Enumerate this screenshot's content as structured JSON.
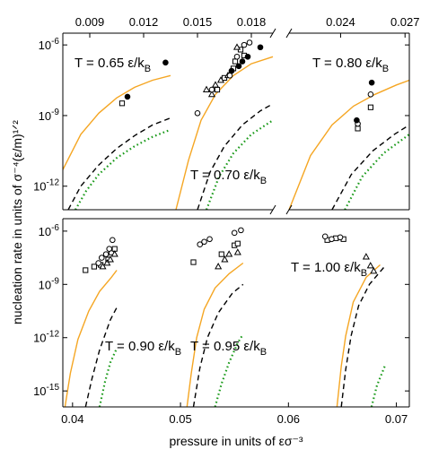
{
  "chart_data": {
    "type": "scatter",
    "ylabel": "nucleation rate in units of σ⁻⁴(ε/m)¹ᐟ²",
    "xlabel": "pressure in units of εσ⁻³",
    "panels": [
      {
        "name": "top",
        "x_range": [
          0.0075,
          0.0272
        ],
        "x_break": [
          0.0192,
          0.0216
        ],
        "x_ticks": [
          0.009,
          0.012,
          0.015,
          0.018,
          0.024,
          0.027
        ],
        "x_tick_labels": [
          "0.009",
          "0.012",
          "0.015",
          "0.018",
          "0.024",
          "0.027"
        ],
        "y_range_log10": [
          -13,
          -5.5
        ],
        "y_ticks_log10": [
          -6,
          -9,
          -12
        ],
        "y_tick_labels": [
          {
            "base": "10",
            "exp": "-6"
          },
          {
            "base": "10",
            "exp": "-9"
          },
          {
            "base": "10",
            "exp": "-12"
          }
        ],
        "temperature_labels": [
          {
            "text": "T = 0.65 ε/k",
            "sub": "B"
          },
          {
            "text": "T = 0.70 ε/k",
            "sub": "B"
          },
          {
            "text": "T = 0.80 ε/k",
            "sub": "B"
          }
        ],
        "groups": [
          {
            "T": 0.65,
            "orange": [
              [
                0.0075,
                -11.3
              ],
              [
                0.0085,
                -9.8
              ],
              [
                0.0095,
                -8.9
              ],
              [
                0.0105,
                -8.25
              ],
              [
                0.0115,
                -7.8
              ],
              [
                0.0125,
                -7.5
              ],
              [
                0.0135,
                -7.3
              ]
            ],
            "black_dashed": [
              [
                0.0078,
                -13
              ],
              [
                0.0085,
                -12.0
              ],
              [
                0.0095,
                -11.1
              ],
              [
                0.0105,
                -10.4
              ],
              [
                0.0115,
                -9.85
              ],
              [
                0.0125,
                -9.4
              ],
              [
                0.0135,
                -9.1
              ]
            ],
            "green_dotted": [
              [
                0.0082,
                -13
              ],
              [
                0.0088,
                -12.2
              ],
              [
                0.0095,
                -11.5
              ],
              [
                0.0105,
                -10.8
              ],
              [
                0.0115,
                -10.3
              ],
              [
                0.0125,
                -9.9
              ],
              [
                0.0135,
                -9.6
              ]
            ],
            "filled_circles": [
              [
                0.0111,
                -8.2
              ],
              [
                0.01322,
                -6.75
              ]
            ],
            "open_squares": [
              [
                0.0108,
                -8.48
              ]
            ]
          },
          {
            "T": 0.7,
            "orange": [
              [
                0.0138,
                -13
              ],
              [
                0.0145,
                -10.9
              ],
              [
                0.0152,
                -9.2
              ],
              [
                0.016,
                -8.1
              ],
              [
                0.017,
                -7.3
              ],
              [
                0.018,
                -6.8
              ],
              [
                0.0192,
                -6.5
              ]
            ],
            "black_dashed": [
              [
                0.015,
                -13
              ],
              [
                0.0157,
                -11.4
              ],
              [
                0.0165,
                -10.3
              ],
              [
                0.0175,
                -9.4
              ],
              [
                0.0185,
                -8.8
              ],
              [
                0.0192,
                -8.5
              ]
            ],
            "green_dotted": [
              [
                0.0155,
                -13
              ],
              [
                0.0162,
                -11.6
              ],
              [
                0.017,
                -10.6
              ],
              [
                0.018,
                -9.8
              ],
              [
                0.0192,
                -9.2
              ]
            ],
            "filled_circles": [
              [
                0.0169,
                -7.1
              ],
              [
                0.0173,
                -6.9
              ],
              [
                0.0175,
                -6.7
              ],
              [
                0.0178,
                -6.5
              ],
              [
                0.0185,
                -6.1
              ]
            ],
            "open_circles": [
              [
                0.015,
                -8.9
              ],
              [
                0.0158,
                -7.9
              ],
              [
                0.0168,
                -7.3
              ],
              [
                0.0172,
                -6.5
              ],
              [
                0.0176,
                -6.0
              ],
              [
                0.0179,
                -5.9
              ]
            ],
            "open_squares": [
              [
                0.0161,
                -7.9
              ],
              [
                0.0165,
                -7.4
              ],
              [
                0.017,
                -7.0
              ],
              [
                0.0171,
                -6.7
              ],
              [
                0.0174,
                -6.2
              ],
              [
                0.0176,
                -6.45
              ]
            ],
            "open_triangles": [
              [
                0.0155,
                -7.9
              ],
              [
                0.0158,
                -8.1
              ],
              [
                0.016,
                -7.7
              ],
              [
                0.0163,
                -7.5
              ],
              [
                0.0167,
                -7.3
              ],
              [
                0.0172,
                -6.1
              ]
            ]
          },
          {
            "T": 0.8,
            "orange": [
              [
                0.0216,
                -13
              ],
              [
                0.0226,
                -10.7
              ],
              [
                0.0236,
                -9.4
              ],
              [
                0.0246,
                -8.6
              ],
              [
                0.0256,
                -8.1
              ],
              [
                0.0266,
                -7.7
              ],
              [
                0.0272,
                -7.5
              ]
            ],
            "black_dashed": [
              [
                0.0236,
                -13
              ],
              [
                0.0245,
                -11.5
              ],
              [
                0.0255,
                -10.5
              ],
              [
                0.0265,
                -9.8
              ],
              [
                0.0272,
                -9.4
              ]
            ],
            "green_dotted": [
              [
                0.0242,
                -13
              ],
              [
                0.025,
                -11.6
              ],
              [
                0.026,
                -10.6
              ],
              [
                0.0272,
                -9.8
              ]
            ],
            "filled_circles": [
              [
                0.02475,
                -9.2
              ],
              [
                0.02545,
                -7.6
              ]
            ],
            "open_circles": [
              [
                0.0248,
                -9.35
              ],
              [
                0.0254,
                -8.1
              ]
            ],
            "open_squares": [
              [
                0.0248,
                -9.55
              ],
              [
                0.0254,
                -8.65
              ]
            ]
          }
        ]
      },
      {
        "name": "bottom",
        "x_range": [
          0.0391,
          0.0712
        ],
        "x_ticks": [
          0.04,
          0.05,
          0.06,
          0.07
        ],
        "x_tick_labels": [
          "0.04",
          "0.05",
          "0.06",
          "0.07"
        ],
        "y_range_log10": [
          -15.9,
          -5.3
        ],
        "y_ticks_log10": [
          -6,
          -9,
          -12,
          -15
        ],
        "y_tick_labels": [
          {
            "base": "10",
            "exp": "-6"
          },
          {
            "base": "10",
            "exp": "-9"
          },
          {
            "base": "10",
            "exp": "-12"
          },
          {
            "base": "10",
            "exp": "-15"
          }
        ],
        "temperature_labels": [
          {
            "text": "T = 0.90 ε/k",
            "sub": "B"
          },
          {
            "text": "T = 0.95 ε/k",
            "sub": "B"
          },
          {
            "text": "T = 1.00 ε/k",
            "sub": "B"
          }
        ],
        "groups": [
          {
            "T": 0.9,
            "orange": [
              [
                0.0393,
                -15.9
              ],
              [
                0.0398,
                -14.0
              ],
              [
                0.0405,
                -12.1
              ],
              [
                0.0415,
                -10.5
              ],
              [
                0.0425,
                -9.4
              ],
              [
                0.0436,
                -8.6
              ],
              [
                0.0441,
                -8.2
              ]
            ],
            "black_dashed": [
              [
                0.0412,
                -15.9
              ],
              [
                0.0418,
                -14.3
              ],
              [
                0.0425,
                -12.7
              ],
              [
                0.0435,
                -11.0
              ],
              [
                0.0441,
                -10.3
              ]
            ],
            "green_dotted": [
              [
                0.0425,
                -15.9
              ],
              [
                0.043,
                -14.5
              ],
              [
                0.0435,
                -13.4
              ],
              [
                0.0441,
                -12.6
              ]
            ],
            "open_circles": [
              [
                0.0424,
                -7.8
              ],
              [
                0.0427,
                -7.5
              ],
              [
                0.0431,
                -7.3
              ],
              [
                0.0434,
                -7.0
              ],
              [
                0.0437,
                -6.5
              ]
            ],
            "open_squares": [
              [
                0.0412,
                -8.2
              ],
              [
                0.042,
                -8.0
              ],
              [
                0.0426,
                -7.9
              ],
              [
                0.0433,
                -7.6
              ],
              [
                0.0436,
                -7.2
              ],
              [
                0.0439,
                -7.0
              ]
            ],
            "open_triangles": [
              [
                0.0428,
                -8.0
              ],
              [
                0.0432,
                -7.8
              ],
              [
                0.0435,
                -7.6
              ],
              [
                0.0439,
                -7.3
              ]
            ]
          },
          {
            "T": 0.95,
            "orange": [
              [
                0.0506,
                -15.9
              ],
              [
                0.051,
                -14.0
              ],
              [
                0.0515,
                -12.0
              ],
              [
                0.0522,
                -10.4
              ],
              [
                0.0532,
                -9.2
              ],
              [
                0.0545,
                -8.4
              ],
              [
                0.0558,
                -7.8
              ]
            ],
            "black_dashed": [
              [
                0.0512,
                -15.9
              ],
              [
                0.0518,
                -13.7
              ],
              [
                0.0525,
                -12.0
              ],
              [
                0.0535,
                -10.6
              ],
              [
                0.0548,
                -9.5
              ],
              [
                0.0558,
                -9.0
              ]
            ],
            "green_dotted": [
              [
                0.0532,
                -15.9
              ],
              [
                0.0538,
                -14.6
              ],
              [
                0.0545,
                -13.4
              ],
              [
                0.0553,
                -12.3
              ],
              [
                0.0558,
                -11.8
              ]
            ],
            "open_circles": [
              [
                0.0518,
                -6.75
              ],
              [
                0.0522,
                -6.6
              ],
              [
                0.0527,
                -6.45
              ],
              [
                0.055,
                -6.1
              ],
              [
                0.0556,
                -5.95
              ]
            ],
            "open_squares": [
              [
                0.0512,
                -7.75
              ],
              [
                0.0538,
                -7.3
              ],
              [
                0.055,
                -6.8
              ],
              [
                0.0553,
                -6.7
              ]
            ],
            "open_triangles": [
              [
                0.0535,
                -8.0
              ],
              [
                0.0541,
                -7.6
              ],
              [
                0.0545,
                -7.3
              ],
              [
                0.0553,
                -7.2
              ]
            ]
          },
          {
            "T": 1.0,
            "orange": [
              [
                0.0645,
                -15.9
              ],
              [
                0.0649,
                -13.6
              ],
              [
                0.0653,
                -11.9
              ],
              [
                0.066,
                -10.0
              ],
              [
                0.0672,
                -8.6
              ],
              [
                0.0685,
                -7.9
              ]
            ],
            "black_dashed": [
              [
                0.0649,
                -15.9
              ],
              [
                0.0653,
                -13.8
              ],
              [
                0.0658,
                -11.9
              ],
              [
                0.0665,
                -10.2
              ],
              [
                0.0675,
                -9.0
              ],
              [
                0.0689,
                -8.0
              ]
            ],
            "green_dotted": [
              [
                0.0677,
                -15.9
              ],
              [
                0.0682,
                -14.7
              ],
              [
                0.0688,
                -13.8
              ],
              [
                0.069,
                -13.5
              ]
            ],
            "open_circles": [
              [
                0.0634,
                -6.3
              ],
              [
                0.064,
                -6.45
              ],
              [
                0.0648,
                -6.35
              ]
            ],
            "open_squares": [
              [
                0.0636,
                -6.5
              ],
              [
                0.0644,
                -6.4
              ],
              [
                0.0651,
                -6.45
              ]
            ],
            "open_triangles": [
              [
                0.0672,
                -7.45
              ],
              [
                0.0676,
                -7.95
              ],
              [
                0.0679,
                -8.25
              ]
            ]
          }
        ]
      }
    ]
  }
}
